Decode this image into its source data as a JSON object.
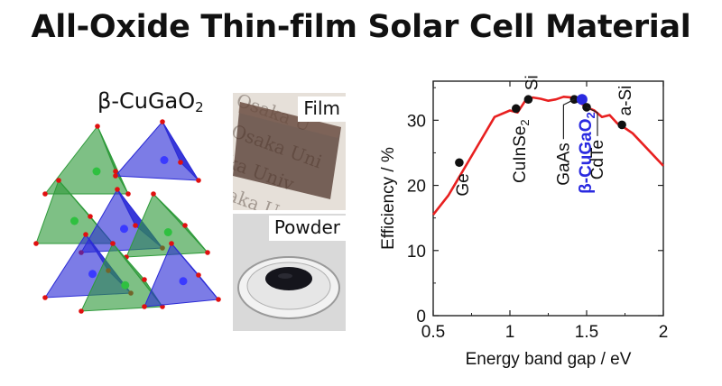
{
  "title": "All-Oxide Thin-film Solar Cell Material",
  "crystal": {
    "label_main": "β-CuGaO",
    "label_sub": "2",
    "colors": {
      "blue": "#2b2bd6",
      "green": "#2e9a3a",
      "atom_red": "#e01010"
    }
  },
  "photos": {
    "film_label": "Film",
    "powder_label": "Powder"
  },
  "chart_data": {
    "type": "line",
    "xlabel": "Energy band gap  /  eV",
    "ylabel": "Efficiency  /  %",
    "xlim": [
      0.5,
      2.0
    ],
    "ylim": [
      0,
      36
    ],
    "xticks": [
      "0.5",
      "1",
      "1.5",
      "2"
    ],
    "yticks": [
      "0",
      "10",
      "20",
      "30"
    ],
    "grid": false,
    "series": [
      {
        "color": "#e82020",
        "x": [
          0.5,
          0.6,
          0.7,
          0.8,
          0.9,
          1.0,
          1.05,
          1.1,
          1.15,
          1.2,
          1.25,
          1.3,
          1.35,
          1.4,
          1.45,
          1.5,
          1.55,
          1.6,
          1.65,
          1.7,
          1.75,
          1.8,
          1.9,
          2.0
        ],
        "y": [
          15.5,
          18.5,
          22.5,
          26.5,
          30.5,
          31.5,
          31.2,
          33.0,
          33.5,
          33.3,
          33.0,
          33.2,
          33.6,
          33.5,
          32.8,
          32.0,
          31.5,
          30.5,
          30.8,
          29.5,
          28.8,
          28.0,
          25.5,
          23.0
        ]
      }
    ],
    "points": [
      {
        "label": "Ge",
        "x": 0.67,
        "y": 23.5,
        "color": "#111111"
      },
      {
        "label": "CuInSe",
        "sub": "2",
        "x": 1.04,
        "y": 31.8,
        "color": "#111111"
      },
      {
        "label": "Si",
        "x": 1.12,
        "y": 33.2,
        "color": "#111111"
      },
      {
        "label": "GaAs",
        "x": 1.42,
        "y": 33.2,
        "color": "#111111"
      },
      {
        "label": "β-CuGaO",
        "sub": "2",
        "x": 1.47,
        "y": 33.2,
        "color": "#2a2ae0"
      },
      {
        "label": "CdTe",
        "x": 1.5,
        "y": 32.0,
        "color": "#111111"
      },
      {
        "label": "a-Si",
        "x": 1.73,
        "y": 29.3,
        "color": "#111111"
      }
    ]
  }
}
